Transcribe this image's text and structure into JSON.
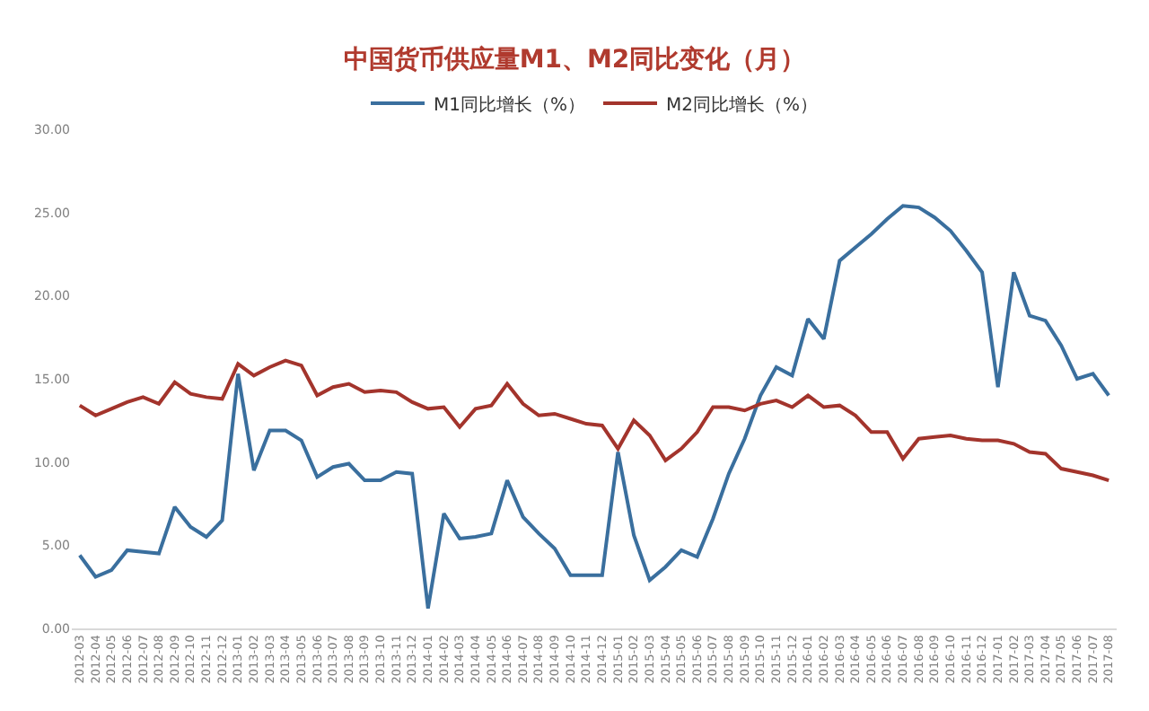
{
  "chart_data": {
    "type": "line",
    "title": "中国货币供应量M1、M2同比变化（月）",
    "categories": [
      "2012-03",
      "2012-04",
      "2012-05",
      "2012-06",
      "2012-07",
      "2012-08",
      "2012-09",
      "2012-10",
      "2012-11",
      "2012-12",
      "2013-01",
      "2013-02",
      "2013-03",
      "2013-04",
      "2013-05",
      "2013-06",
      "2013-07",
      "2013-08",
      "2013-09",
      "2013-10",
      "2013-11",
      "2013-12",
      "2014-01",
      "2014-02",
      "2014-03",
      "2014-04",
      "2014-05",
      "2014-06",
      "2014-07",
      "2014-08",
      "2014-09",
      "2014-10",
      "2014-11",
      "2014-12",
      "2015-01",
      "2015-02",
      "2015-03",
      "2015-04",
      "2015-05",
      "2015-06",
      "2015-07",
      "2015-08",
      "2015-09",
      "2015-10",
      "2015-11",
      "2015-12",
      "2016-01",
      "2016-02",
      "2016-03",
      "2016-04",
      "2016-05",
      "2016-06",
      "2016-07",
      "2016-08",
      "2016-09",
      "2016-10",
      "2016-11",
      "2016-12",
      "2017-01",
      "2017-02",
      "2017-03",
      "2017-04",
      "2017-05",
      "2017-06",
      "2017-07",
      "2017-08"
    ],
    "series": [
      {
        "name": "M1同比增长（%）",
        "color": "#3a6f9e",
        "values": [
          4.4,
          3.1,
          3.5,
          4.7,
          4.6,
          4.5,
          7.3,
          6.1,
          5.5,
          6.5,
          15.3,
          9.5,
          11.9,
          11.9,
          11.3,
          9.1,
          9.7,
          9.9,
          8.9,
          8.9,
          9.4,
          9.3,
          1.2,
          6.9,
          5.4,
          5.5,
          5.7,
          8.9,
          6.7,
          5.7,
          4.8,
          3.2,
          3.2,
          3.2,
          10.6,
          5.6,
          2.9,
          3.7,
          4.7,
          4.3,
          6.6,
          9.3,
          11.4,
          14.0,
          15.7,
          15.2,
          18.6,
          17.4,
          22.1,
          22.9,
          23.7,
          24.6,
          25.4,
          25.3,
          24.7,
          23.9,
          22.7,
          21.4,
          14.5,
          21.4,
          18.8,
          18.5,
          17.0,
          15.0,
          15.3,
          14.0
        ]
      },
      {
        "name": "M2同比增长（%）",
        "color": "#a3342c",
        "values": [
          13.4,
          12.8,
          13.2,
          13.6,
          13.9,
          13.5,
          14.8,
          14.1,
          13.9,
          13.8,
          15.9,
          15.2,
          15.7,
          16.1,
          15.8,
          14.0,
          14.5,
          14.7,
          14.2,
          14.3,
          14.2,
          13.6,
          13.2,
          13.3,
          12.1,
          13.2,
          13.4,
          14.7,
          13.5,
          12.8,
          12.9,
          12.6,
          12.3,
          12.2,
          10.8,
          12.5,
          11.6,
          10.1,
          10.8,
          11.8,
          13.3,
          13.3,
          13.1,
          13.5,
          13.7,
          13.3,
          14.0,
          13.3,
          13.4,
          12.8,
          11.8,
          11.8,
          10.2,
          11.4,
          11.5,
          11.6,
          11.4,
          11.3,
          11.3,
          11.1,
          10.6,
          10.5,
          9.6,
          9.4,
          9.2,
          8.9
        ]
      }
    ],
    "ylim": [
      0,
      30
    ],
    "yticks": [
      {
        "value": 0,
        "label": "0.00"
      },
      {
        "value": 5,
        "label": "5.00"
      },
      {
        "value": 10,
        "label": "10.00"
      },
      {
        "value": 15,
        "label": "15.00"
      },
      {
        "value": 20,
        "label": "20.00"
      },
      {
        "value": 25,
        "label": "25.00"
      },
      {
        "value": 30,
        "label": "30.00"
      }
    ],
    "legend": "top",
    "marker": "none",
    "line_style": "solid"
  }
}
